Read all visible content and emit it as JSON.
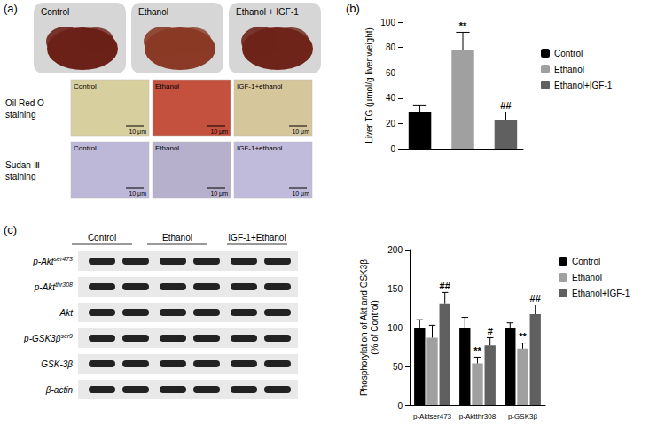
{
  "chart_data": [
    {
      "type": "bar",
      "ylabel": "Liver TG (μmol/g liver weight)",
      "categories": [
        null
      ],
      "series": [
        {
          "name": "Control",
          "color": "#000000",
          "values": [
            29
          ],
          "errors": [
            5
          ]
        },
        {
          "name": "Ethanol",
          "color": "#a0a0a0",
          "values": [
            78
          ],
          "errors": [
            14
          ],
          "annotations": [
            "**"
          ]
        },
        {
          "name": "Ethanol+IGF-1",
          "color": "#606060",
          "values": [
            23
          ],
          "errors": [
            6
          ],
          "annotations": [
            "##"
          ]
        }
      ],
      "ylim": [
        0,
        100
      ],
      "yticks": [
        0,
        20,
        40,
        60,
        80,
        100
      ],
      "grid": false,
      "legend": "right",
      "tick_labels": "y"
    },
    {
      "type": "bar",
      "ylabel": "Phosphorylation of Akt and GSK3β\n(% of Control)",
      "categories": [
        "p-Aktser473",
        "p-Aktthr308",
        "p-GSK3β"
      ],
      "series": [
        {
          "name": "Control",
          "color": "#000000",
          "values": [
            100,
            100,
            100
          ],
          "errors": [
            10,
            13,
            6
          ]
        },
        {
          "name": "Ethanol",
          "color": "#a0a0a0",
          "values": [
            87,
            54,
            73
          ],
          "errors": [
            16,
            8,
            7
          ],
          "annotations": [
            null,
            "**",
            "**"
          ]
        },
        {
          "name": "Ethanol+IGF-1",
          "color": "#606060",
          "values": [
            131,
            77,
            117
          ],
          "errors": [
            14,
            10,
            12
          ],
          "annotations": [
            "##",
            "#",
            "##"
          ]
        }
      ],
      "ylim": [
        0,
        200
      ],
      "yticks": [
        0,
        50,
        100,
        150,
        200
      ],
      "grid": false,
      "legend": "right"
    }
  ],
  "figure": {
    "panel_a": {
      "label": "(a)",
      "photo_labels": [
        "Control",
        "Ethanol",
        "Ethanol + IGF-1"
      ],
      "stain_rows": [
        "Oil Red O\nstaining",
        "Sudan Ⅲ\nstaining"
      ],
      "stain_columns": [
        "Control",
        "Ethanol",
        "IGF-1+ethanol"
      ],
      "scale_bar": "10 μm"
    },
    "panel_b": {
      "label": "(b)"
    },
    "panel_c": {
      "label": "(c)",
      "blot_columns": [
        "Control",
        "Ethanol",
        "IGF-1+Ethanol"
      ],
      "blot_rows": [
        {
          "text": "p-Akt",
          "superscript": "ser473"
        },
        {
          "text": "p-Akt",
          "superscript": "thr308"
        },
        {
          "text": "Akt"
        },
        {
          "text": "p-GSK3β",
          "superscript": "ser9"
        },
        {
          "text": "GSK-3β"
        },
        {
          "text": "β-actin"
        }
      ]
    }
  }
}
